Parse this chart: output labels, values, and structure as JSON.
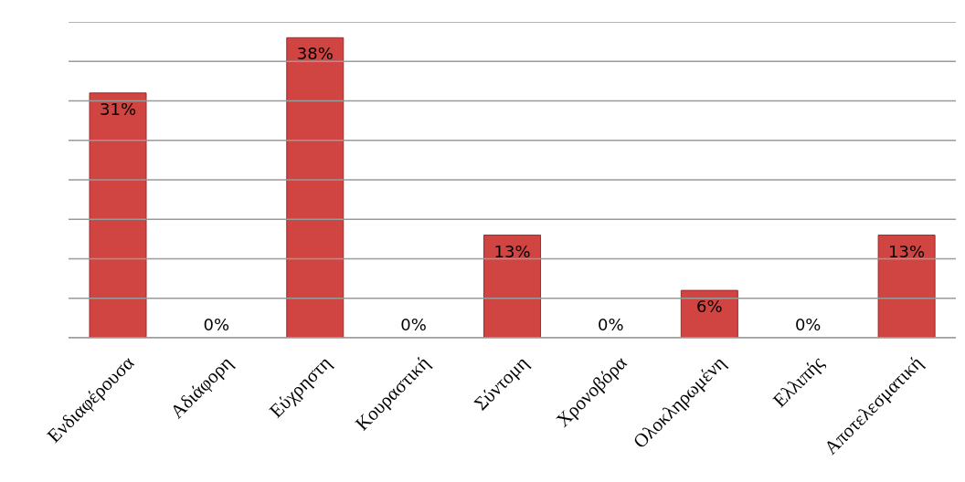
{
  "chart_data": {
    "type": "bar",
    "categories": [
      "Ενδιαφέρουσα",
      "Αδιάφορη",
      "Εύχρηστη",
      "Κουραστική",
      "Σύντομη",
      "Χρονοβόρα",
      "Ολοκληρωμένη",
      "Ελλιπής",
      "Αποτελεσματική"
    ],
    "values": [
      31,
      0,
      38,
      0,
      13,
      0,
      6,
      0,
      13
    ],
    "value_labels": [
      "31%",
      "0%",
      "38%",
      "0%",
      "13%",
      "0%",
      "6%",
      "0%",
      "13%"
    ],
    "color": "#d04442",
    "ylim": [
      0,
      40
    ],
    "yticks": [
      {
        "value": 0,
        "label": null
      },
      {
        "value": 5,
        "label": null
      },
      {
        "value": 10,
        "label": null
      },
      {
        "value": 15,
        "label": null
      },
      {
        "value": 20,
        "label": null
      },
      {
        "value": 25,
        "label": null
      },
      {
        "value": 30,
        "label": null
      },
      {
        "value": 35,
        "label": null
      },
      {
        "value": 40,
        "label": null
      }
    ],
    "grid": "y",
    "tick_labels": "x"
  }
}
